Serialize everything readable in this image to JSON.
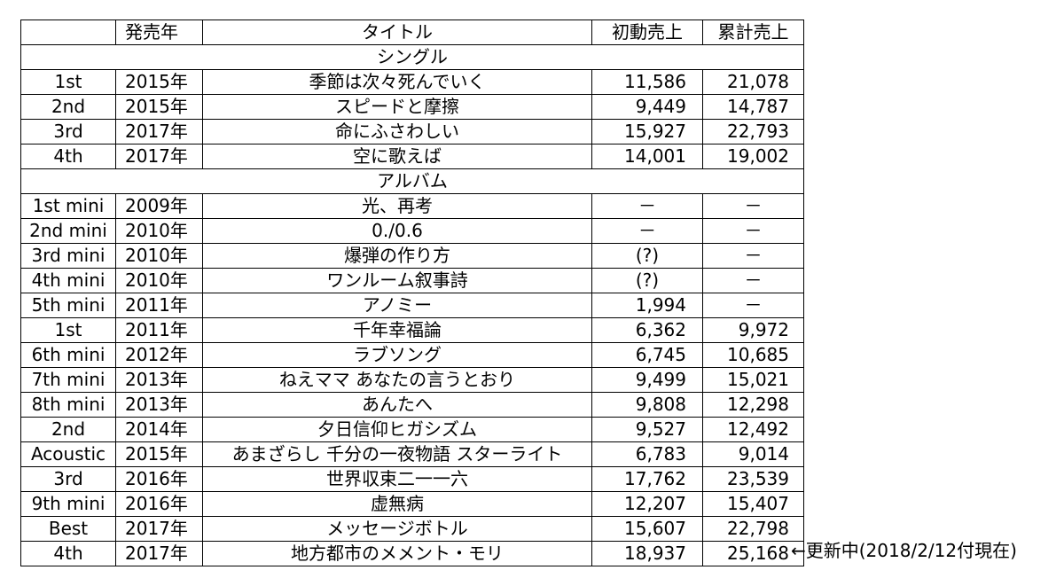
{
  "headers": {
    "no": "",
    "year": "発売年",
    "title": "タイトル",
    "first_week": "初動売上",
    "total": "累計売上"
  },
  "sections": [
    {
      "label": "シングル",
      "rows": [
        {
          "no": "1st",
          "year": "2015年",
          "title": "季節は次々死んでいく",
          "first_week": "11,586",
          "total": "21,078"
        },
        {
          "no": "2nd",
          "year": "2015年",
          "title": "スピードと摩擦",
          "first_week": "9,449",
          "total": "14,787"
        },
        {
          "no": "3rd",
          "year": "2017年",
          "title": "命にふさわしい",
          "first_week": "15,927",
          "total": "22,793"
        },
        {
          "no": "4th",
          "year": "2017年",
          "title": "空に歌えば",
          "first_week": "14,001",
          "total": "19,002"
        }
      ]
    },
    {
      "label": "アルバム",
      "rows": [
        {
          "no": "1st mini",
          "year": "2009年",
          "title": "光、再考",
          "first_week": "－",
          "total": "－"
        },
        {
          "no": "2nd mini",
          "year": "2010年",
          "title": "0./0.6",
          "first_week": "－",
          "total": "－"
        },
        {
          "no": "3rd mini",
          "year": "2010年",
          "title": "爆弾の作り方",
          "first_week": "(?)",
          "total": "－"
        },
        {
          "no": "4th mini",
          "year": "2010年",
          "title": "ワンルーム叙事詩",
          "first_week": "(?)",
          "total": "－"
        },
        {
          "no": "5th mini",
          "year": "2011年",
          "title": "アノミー",
          "first_week": "1,994",
          "total": "－"
        },
        {
          "no": "1st",
          "year": "2011年",
          "title": "千年幸福論",
          "first_week": "6,362",
          "total": "9,972"
        },
        {
          "no": "6th mini",
          "year": "2012年",
          "title": "ラブソング",
          "first_week": "6,745",
          "total": "10,685"
        },
        {
          "no": "7th mini",
          "year": "2013年",
          "title": "ねえママ あなたの言うとおり",
          "first_week": "9,499",
          "total": "15,021"
        },
        {
          "no": "8th mini",
          "year": "2013年",
          "title": "あんたへ",
          "first_week": "9,808",
          "total": "12,298"
        },
        {
          "no": "2nd",
          "year": "2014年",
          "title": "夕日信仰ヒガシズム",
          "first_week": "9,527",
          "total": "12,492"
        },
        {
          "no": "Acoustic",
          "year": "2015年",
          "title": "あまざらし 千分の一夜物語 スターライト",
          "first_week": "6,783",
          "total": "9,014"
        },
        {
          "no": "3rd",
          "year": "2016年",
          "title": "世界収束二一一六",
          "first_week": "17,762",
          "total": "23,539"
        },
        {
          "no": "9th mini",
          "year": "2016年",
          "title": "虚無病",
          "first_week": "12,207",
          "total": "15,407"
        },
        {
          "no": "Best",
          "year": "2017年",
          "title": "メッセージボトル",
          "first_week": "15,607",
          "total": "22,798"
        },
        {
          "no": "4th",
          "year": "2017年",
          "title": "地方都市のメメント・モリ",
          "first_week": "18,937",
          "total": "25,168"
        }
      ]
    }
  ],
  "note": "←更新中(2018/2/12付現在)"
}
